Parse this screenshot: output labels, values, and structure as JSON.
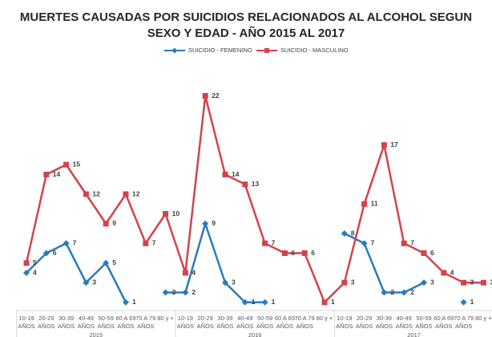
{
  "chart_data": {
    "type": "line",
    "title": [
      "MUERTES CAUSADAS POR SUICIDIOS RELACIONADOS AL ALCOHOL SEGUN",
      "SEXO Y EDAD - AÑO 2015  AL 2017"
    ],
    "categories": [
      "10-19 AÑOS",
      "20-29 AÑOS",
      "30-39 AÑOS",
      "40-49 AÑOS",
      "50-59 AÑOS",
      "60 A 69 AÑOS",
      "70 A 79 AÑOS",
      "80 y +",
      "10-19 AÑOS",
      "20-29 AÑOS",
      "30-39 AÑOS",
      "40-49 AÑOS",
      "50-59 AÑOS",
      "60 A 69 AÑOS",
      "70 A 79 AÑOS",
      "80 y +",
      "10-19 AÑOS",
      "20-29 AÑOS",
      "30-39 AÑOS",
      "40-49 AÑOS",
      "50-59 AÑOS",
      "60 A 69 AÑOS",
      "70 A 79 AÑOS",
      "80 y +"
    ],
    "groups": [
      "2015",
      "2016",
      "2017"
    ],
    "series": [
      {
        "name": "SUICIDIO - FEMENINO",
        "color": "#2b7bba",
        "marker": "diamond",
        "values": [
          4,
          6,
          7,
          3,
          5,
          1,
          null,
          2,
          2,
          9,
          3,
          1,
          1,
          null,
          null,
          null,
          8,
          7,
          2,
          2,
          3,
          null,
          1,
          null
        ]
      },
      {
        "name": "SUICIDIO - MASCULINO",
        "color": "#d4424c",
        "marker": "square",
        "values": [
          5,
          14,
          15,
          12,
          9,
          12,
          7,
          10,
          4,
          22,
          14,
          13,
          7,
          6,
          6,
          1,
          3,
          11,
          17,
          7,
          6,
          4,
          3,
          3
        ]
      }
    ],
    "ylim": [
      0,
      24
    ],
    "legend": "top"
  }
}
